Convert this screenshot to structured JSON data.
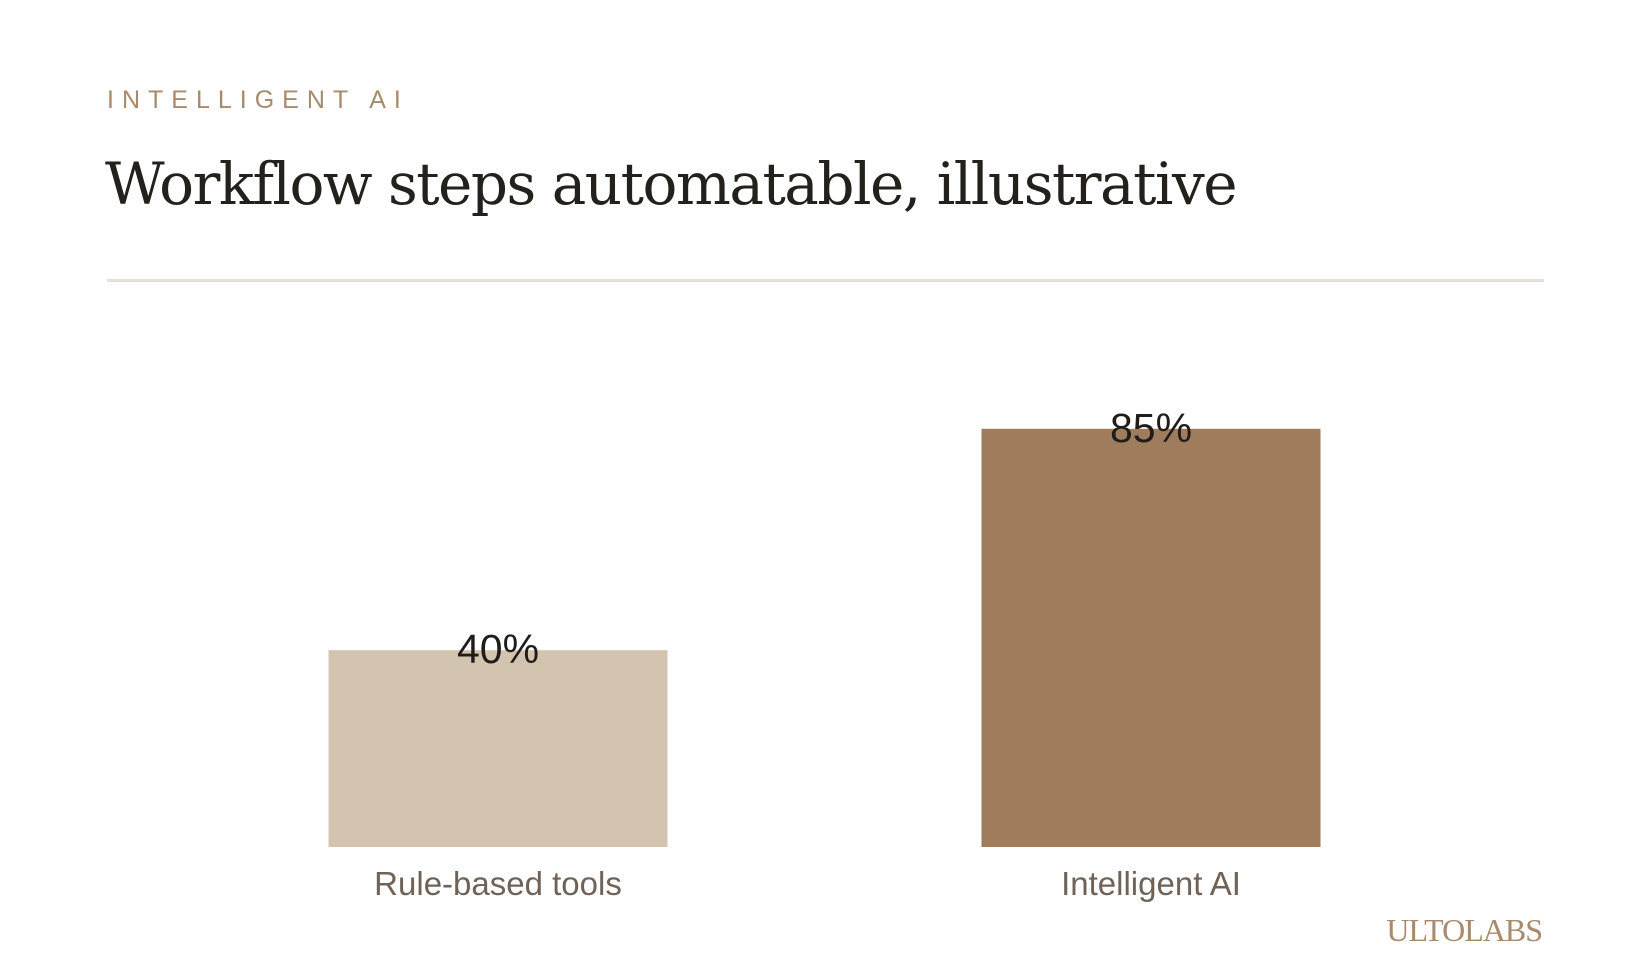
{
  "header": {
    "eyebrow": "INTELLIGENT AI",
    "title": "Workflow steps automatable, illustrative"
  },
  "brand": {
    "logo_text": "ULTOLABS"
  },
  "colors": {
    "accent": "#a88a6c",
    "bar_muted": "#d3c4b0",
    "bar_strong": "#9f7c5c",
    "label": "#6f6358",
    "value": "#1f1c19",
    "rule": "#e6e0d9"
  },
  "chart_data": {
    "type": "bar",
    "categories": [
      "Rule-based tools",
      "Intelligent AI"
    ],
    "values": [
      40,
      85
    ],
    "value_labels": [
      "40%",
      "85%"
    ],
    "unit": "%",
    "ylim": [
      0,
      100
    ],
    "grid": false,
    "legend": "none",
    "bar_colors": [
      "#d3c4b0",
      "#9f7c5c"
    ]
  }
}
